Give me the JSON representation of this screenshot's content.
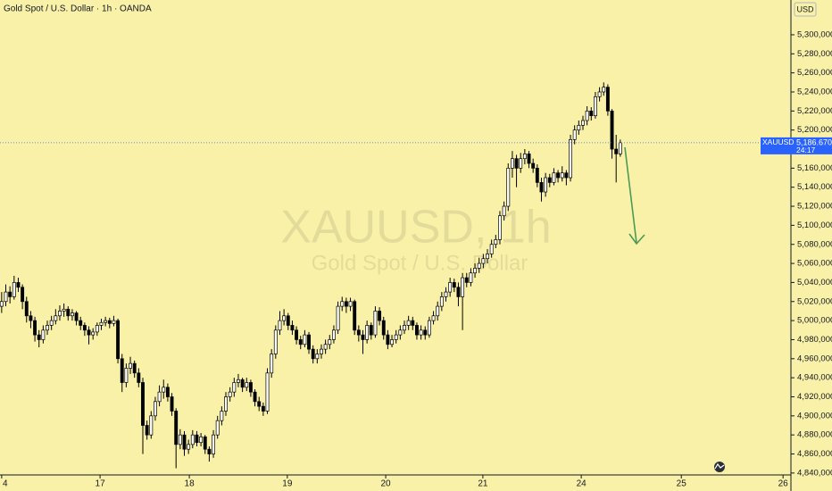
{
  "header": {
    "title": "Gold Spot / U.S. Dollar · 1h · OANDA",
    "currency": "USD"
  },
  "chart_data": {
    "type": "candlestick",
    "watermark_symbol": "XAUUSD, 1h",
    "watermark_name": "Gold Spot / U.S. Dollar",
    "symbol_tag": "XAUUSD",
    "countdown": "24:17",
    "last_price": {
      "value": 5186670,
      "label": "5,186.670"
    },
    "up_color": "#ffffff",
    "down_color": "#000000",
    "outline_color": "#000000",
    "background": "#faf1a9",
    "last_price_color": "#2962ff",
    "xlim": [
      -0.4,
      190.1
    ],
    "xticks": [
      {
        "value": 0,
        "label": "4"
      },
      {
        "value": 23.7,
        "label": "17"
      },
      {
        "value": 45.2,
        "label": "18"
      },
      {
        "value": 68.8,
        "label": "19"
      },
      {
        "value": 92.5,
        "label": "20"
      },
      {
        "value": 115.9,
        "label": "21"
      },
      {
        "value": 139.6,
        "label": "24"
      },
      {
        "value": 163.7,
        "label": "25"
      },
      {
        "value": 188.2,
        "label": "26"
      }
    ],
    "ylim": [
      4838000,
      5336500
    ],
    "yticks": [
      {
        "value": 5300000,
        "label": "5,300,000"
      },
      {
        "value": 5280000,
        "label": "5,280,000"
      },
      {
        "value": 5260000,
        "label": "5,260,000"
      },
      {
        "value": 5240000,
        "label": "5,240,000"
      },
      {
        "value": 5220000,
        "label": "5,220,000"
      },
      {
        "value": 5200000,
        "label": "5,200,000"
      },
      {
        "value": 5180000,
        "label": "5,180,000"
      },
      {
        "value": 5160000,
        "label": "5,160,000"
      },
      {
        "value": 5140000,
        "label": "5,140,000"
      },
      {
        "value": 5120000,
        "label": "5,120,000"
      },
      {
        "value": 5100000,
        "label": "5,100,000"
      },
      {
        "value": 5080000,
        "label": "5,080,000"
      },
      {
        "value": 5060000,
        "label": "5,060,000"
      },
      {
        "value": 5040000,
        "label": "5,040,000"
      },
      {
        "value": 5020000,
        "label": "5,020,000"
      },
      {
        "value": 5000000,
        "label": "5,000,000"
      },
      {
        "value": 4980000,
        "label": "4,980,000"
      },
      {
        "value": 4960000,
        "label": "4,960,000"
      },
      {
        "value": 4940000,
        "label": "4,940,000"
      },
      {
        "value": 4920000,
        "label": "4,920,000"
      },
      {
        "value": 4900000,
        "label": "4,900,000"
      },
      {
        "value": 4880000,
        "label": "4,880,000"
      },
      {
        "value": 4860000,
        "label": "4,860,000"
      },
      {
        "value": 4840000,
        "label": "4,840,000"
      }
    ],
    "ohlc": [
      [
        5015000,
        5030000,
        5008000,
        5020000
      ],
      [
        5020000,
        5038000,
        5015000,
        5030000
      ],
      [
        5030000,
        5036000,
        5018000,
        5025000
      ],
      [
        5025000,
        5047000,
        5022000,
        5040000
      ],
      [
        5040000,
        5045000,
        5030000,
        5035000
      ],
      [
        5035000,
        5038000,
        5012000,
        5020000
      ],
      [
        5020000,
        5025000,
        4998000,
        5005000
      ],
      [
        5005000,
        5010000,
        4992000,
        5000000
      ],
      [
        5000000,
        5004000,
        4978000,
        4985000
      ],
      [
        4985000,
        4990000,
        4972000,
        4980000
      ],
      [
        4980000,
        4995000,
        4976000,
        4990000
      ],
      [
        4990000,
        5000000,
        4985000,
        4995000
      ],
      [
        4995000,
        5005000,
        4990000,
        5000000
      ],
      [
        5000000,
        5012000,
        4996000,
        5005000
      ],
      [
        5005000,
        5016000,
        5000000,
        5010000
      ],
      [
        5010000,
        5018000,
        5004000,
        5012000
      ],
      [
        5012000,
        5015000,
        5000000,
        5005000
      ],
      [
        5005000,
        5012000,
        5000000,
        5008000
      ],
      [
        5008000,
        5010000,
        4995000,
        5000000
      ],
      [
        5000000,
        5004000,
        4990000,
        4995000
      ],
      [
        4995000,
        4998000,
        4984000,
        4990000
      ],
      [
        4990000,
        4994000,
        4975000,
        4985000
      ],
      [
        4985000,
        4992000,
        4980000,
        4988000
      ],
      [
        4988000,
        4998000,
        4984000,
        4995000
      ],
      [
        4995000,
        5002000,
        4990000,
        4998000
      ],
      [
        4998000,
        5004000,
        4994000,
        5000000
      ],
      [
        5000000,
        5003000,
        4992000,
        4997000
      ],
      [
        4997000,
        5005000,
        4994000,
        5000000
      ],
      [
        5000000,
        5002000,
        4955000,
        4960000
      ],
      [
        4960000,
        4965000,
        4925000,
        4935000
      ],
      [
        4935000,
        4955000,
        4930000,
        4950000
      ],
      [
        4950000,
        4962000,
        4944000,
        4955000
      ],
      [
        4955000,
        4958000,
        4940000,
        4945000
      ],
      [
        4945000,
        4950000,
        4930000,
        4935000
      ],
      [
        4935000,
        4940000,
        4860000,
        4890000
      ],
      [
        4890000,
        4895000,
        4875000,
        4880000
      ],
      [
        4880000,
        4905000,
        4876000,
        4900000
      ],
      [
        4900000,
        4920000,
        4895000,
        4915000
      ],
      [
        4915000,
        4932000,
        4910000,
        4925000
      ],
      [
        4925000,
        4938000,
        4918000,
        4930000
      ],
      [
        4930000,
        4934000,
        4915000,
        4920000
      ],
      [
        4920000,
        4924000,
        4900000,
        4905000
      ],
      [
        4905000,
        4908000,
        4845000,
        4870000
      ],
      [
        4870000,
        4886000,
        4865000,
        4880000
      ],
      [
        4880000,
        4884000,
        4858000,
        4865000
      ],
      [
        4865000,
        4875000,
        4860000,
        4870000
      ],
      [
        4870000,
        4885000,
        4866000,
        4880000
      ],
      [
        4880000,
        4884000,
        4868000,
        4872000
      ],
      [
        4872000,
        4882000,
        4868000,
        4878000
      ],
      [
        4878000,
        4880000,
        4860000,
        4865000
      ],
      [
        4865000,
        4868000,
        4852000,
        4860000
      ],
      [
        4860000,
        4885000,
        4856000,
        4880000
      ],
      [
        4880000,
        4900000,
        4876000,
        4895000
      ],
      [
        4895000,
        4910000,
        4890000,
        4905000
      ],
      [
        4905000,
        4925000,
        4900000,
        4920000
      ],
      [
        4920000,
        4930000,
        4915000,
        4925000
      ],
      [
        4925000,
        4940000,
        4920000,
        4935000
      ],
      [
        4935000,
        4944000,
        4930000,
        4938000
      ],
      [
        4938000,
        4940000,
        4925000,
        4930000
      ],
      [
        4930000,
        4940000,
        4926000,
        4935000
      ],
      [
        4935000,
        4938000,
        4920000,
        4925000
      ],
      [
        4925000,
        4928000,
        4910000,
        4915000
      ],
      [
        4915000,
        4920000,
        4905000,
        4910000
      ],
      [
        4910000,
        4914000,
        4900000,
        4905000
      ],
      [
        4905000,
        4950000,
        4902000,
        4945000
      ],
      [
        4945000,
        4970000,
        4940000,
        4965000
      ],
      [
        4965000,
        4995000,
        4960000,
        4990000
      ],
      [
        4990000,
        5010000,
        4985000,
        5000000
      ],
      [
        5000000,
        5012000,
        4995000,
        5005000
      ],
      [
        5005000,
        5008000,
        4990000,
        4995000
      ],
      [
        4995000,
        5000000,
        4985000,
        4990000
      ],
      [
        4990000,
        4994000,
        4975000,
        4980000
      ],
      [
        4980000,
        4984000,
        4970000,
        4975000
      ],
      [
        4975000,
        4990000,
        4972000,
        4985000
      ],
      [
        4985000,
        4988000,
        4965000,
        4970000
      ],
      [
        4970000,
        4974000,
        4955000,
        4960000
      ],
      [
        4960000,
        4970000,
        4955000,
        4965000
      ],
      [
        4965000,
        4975000,
        4960000,
        4970000
      ],
      [
        4970000,
        4980000,
        4965000,
        4975000
      ],
      [
        4975000,
        4985000,
        4970000,
        4980000
      ],
      [
        4980000,
        4995000,
        4976000,
        4990000
      ],
      [
        4990000,
        5020000,
        4986000,
        5015000
      ],
      [
        5015000,
        5025000,
        5010000,
        5020000
      ],
      [
        5020000,
        5024000,
        5008000,
        5015000
      ],
      [
        5015000,
        5024000,
        5010000,
        5020000
      ],
      [
        5020000,
        5022000,
        4985000,
        4990000
      ],
      [
        4990000,
        4995000,
        4978000,
        4985000
      ],
      [
        4985000,
        4990000,
        4965000,
        4980000
      ],
      [
        4980000,
        5000000,
        4976000,
        4995000
      ],
      [
        4995000,
        4998000,
        4980000,
        4985000
      ],
      [
        4985000,
        5015000,
        4982000,
        5010000
      ],
      [
        5010000,
        5014000,
        4995000,
        5000000
      ],
      [
        5000000,
        5004000,
        4980000,
        4985000
      ],
      [
        4985000,
        4990000,
        4970000,
        4975000
      ],
      [
        4975000,
        4985000,
        4972000,
        4980000
      ],
      [
        4980000,
        4990000,
        4976000,
        4985000
      ],
      [
        4985000,
        4995000,
        4980000,
        4990000
      ],
      [
        4990000,
        5000000,
        4986000,
        4995000
      ],
      [
        4995000,
        5005000,
        4990000,
        5000000
      ],
      [
        5000000,
        5004000,
        4990000,
        4995000
      ],
      [
        4995000,
        4998000,
        4980000,
        4985000
      ],
      [
        4985000,
        4995000,
        4980000,
        4990000
      ],
      [
        4990000,
        4994000,
        4980000,
        4985000
      ],
      [
        4985000,
        5004000,
        4982000,
        5000000
      ],
      [
        5000000,
        5010000,
        4996000,
        5005000
      ],
      [
        5005000,
        5020000,
        5000000,
        5015000
      ],
      [
        5015000,
        5030000,
        5010000,
        5025000
      ],
      [
        5025000,
        5035000,
        5020000,
        5030000
      ],
      [
        5030000,
        5045000,
        5025000,
        5040000
      ],
      [
        5040000,
        5044000,
        5030000,
        5035000
      ],
      [
        5035000,
        5040000,
        5015000,
        5025000
      ],
      [
        5025000,
        5050000,
        4990000,
        5045000
      ],
      [
        5045000,
        5050000,
        5035000,
        5040000
      ],
      [
        5040000,
        5055000,
        5036000,
        5050000
      ],
      [
        5050000,
        5060000,
        5045000,
        5055000
      ],
      [
        5055000,
        5066000,
        5050000,
        5060000
      ],
      [
        5060000,
        5070000,
        5055000,
        5065000
      ],
      [
        5065000,
        5075000,
        5060000,
        5070000
      ],
      [
        5070000,
        5085000,
        5066000,
        5080000
      ],
      [
        5080000,
        5090000,
        5076000,
        5085000
      ],
      [
        5085000,
        5115000,
        5080000,
        5110000
      ],
      [
        5110000,
        5125000,
        5105000,
        5120000
      ],
      [
        5120000,
        5165000,
        5115000,
        5160000
      ],
      [
        5160000,
        5178000,
        5150000,
        5170000
      ],
      [
        5170000,
        5174000,
        5140000,
        5160000
      ],
      [
        5160000,
        5176000,
        5155000,
        5170000
      ],
      [
        5170000,
        5180000,
        5164000,
        5175000
      ],
      [
        5175000,
        5178000,
        5160000,
        5165000
      ],
      [
        5165000,
        5170000,
        5155000,
        5160000
      ],
      [
        5160000,
        5164000,
        5140000,
        5145000
      ],
      [
        5145000,
        5150000,
        5125000,
        5135000
      ],
      [
        5135000,
        5155000,
        5130000,
        5150000
      ],
      [
        5150000,
        5154000,
        5140000,
        5145000
      ],
      [
        5145000,
        5160000,
        5142000,
        5155000
      ],
      [
        5155000,
        5158000,
        5145000,
        5150000
      ],
      [
        5150000,
        5162000,
        5146000,
        5155000
      ],
      [
        5155000,
        5158000,
        5142000,
        5150000
      ],
      [
        5150000,
        5195000,
        5146000,
        5190000
      ],
      [
        5190000,
        5205000,
        5185000,
        5200000
      ],
      [
        5200000,
        5210000,
        5195000,
        5205000
      ],
      [
        5205000,
        5215000,
        5200000,
        5210000
      ],
      [
        5210000,
        5225000,
        5205000,
        5220000
      ],
      [
        5220000,
        5224000,
        5210000,
        5215000
      ],
      [
        5215000,
        5240000,
        5212000,
        5235000
      ],
      [
        5235000,
        5245000,
        5230000,
        5240000
      ],
      [
        5240000,
        5250000,
        5236000,
        5245000
      ],
      [
        5245000,
        5248000,
        5215000,
        5220000
      ],
      [
        5220000,
        5222000,
        5170000,
        5180000
      ],
      [
        5180000,
        5195000,
        5145000,
        5175000
      ],
      [
        5175000,
        5190000,
        5172000,
        5186670
      ]
    ]
  }
}
